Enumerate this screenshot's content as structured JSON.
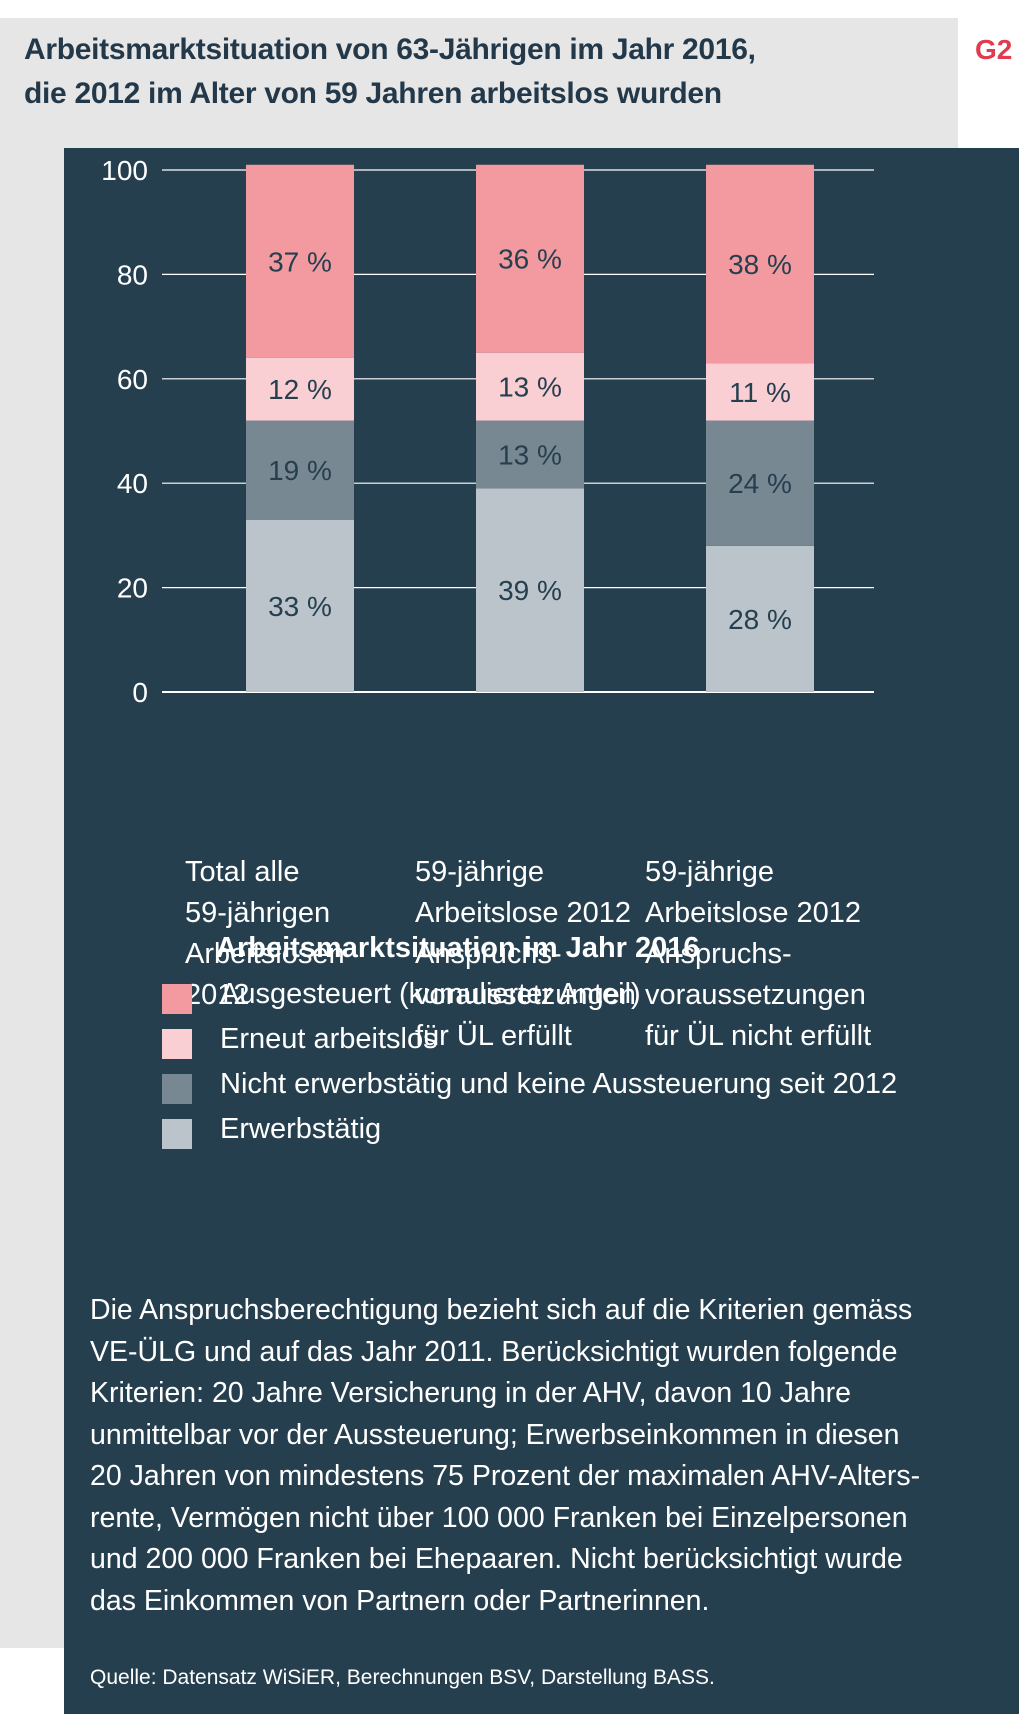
{
  "figure_label": "G2",
  "title_lines": [
    "Arbeitsmarktsituation von 63-Jährigen im Jahr 2016,",
    "die 2012 im Alter von 59 Jahren arbeitslos wurden"
  ],
  "chart_data": {
    "type": "bar",
    "stacked": true,
    "categories": [
      "Total alle\n59-jährigen\nArbeitslosen\n2012",
      "59-jährige\nArbeitslose 2012\nAnspruchs-\nvoraussetzungen\nfür ÜL erfüllt",
      "59-jährige\nArbeitslose 2012\nAnspruchs-\nvoraussetzungen\nfür ÜL nicht erfüllt"
    ],
    "series": [
      {
        "name": "Erwerbstätig",
        "color": "#bcc4cb",
        "values": [
          33,
          39,
          28
        ],
        "labels": [
          "33 %",
          "39 %",
          "28 %"
        ]
      },
      {
        "name": "Nicht erwerbstätig und keine Aussteuerung seit 2012",
        "color": "#788892",
        "values": [
          19,
          13,
          24
        ],
        "labels": [
          "19 %",
          "13 %",
          "24 %"
        ]
      },
      {
        "name": "Erneut arbeitslos",
        "color": "#f9cfd3",
        "values": [
          12,
          13,
          11
        ],
        "labels": [
          "12 %",
          "13 %",
          "11 %"
        ]
      },
      {
        "name": "Ausgesteuert (kumulierter Anteil)",
        "color": "#f39aa1",
        "values": [
          37,
          36,
          38
        ],
        "labels": [
          "37 %",
          "36 %",
          "38 %"
        ]
      }
    ],
    "ylim": [
      0,
      100
    ],
    "yticks": [
      0,
      20,
      40,
      60,
      80,
      100
    ],
    "grid": true,
    "legend_title": "Arbeitsmarktsituation im Jahr 2016",
    "legend_order": [
      "Ausgesteuert (kumulierter Anteil)",
      "Erneut arbeitslos",
      "Nicht erwerbstätig und keine Aussteuerung seit 2012",
      "Erwerbstätig"
    ]
  },
  "note_lines": [
    "Die Anspruchsberechtigung bezieht sich auf die Kriterien gemäss",
    "VE-ÜLG und auf das Jahr 2011. Berücksichtigt wurden folgende",
    "Kriterien: 20 Jahre Versicherung in der AHV, davon 10 Jahre",
    "unmittelbar vor der Aussteuerung; Erwerbseinkommen in diesen",
    "20 Jahren von mindestens 75 Prozent der maximalen AHV-Alters-",
    "rente, Vermögen nicht über 100 000 Franken bei Einzelpersonen",
    "und 200 000 Franken bei Ehepaaren. Nicht berücksichtigt wurde",
    "das Einkommen von Partnern oder Partnerinnen."
  ],
  "source": "Quelle: Datensatz WiSiER, Berechnungen BSV, Darstellung BASS.",
  "colors": {
    "panel": "#263f4f",
    "outer_bg": "#e6e6e7",
    "title": "#23394a",
    "accent": "#e23a4e"
  }
}
